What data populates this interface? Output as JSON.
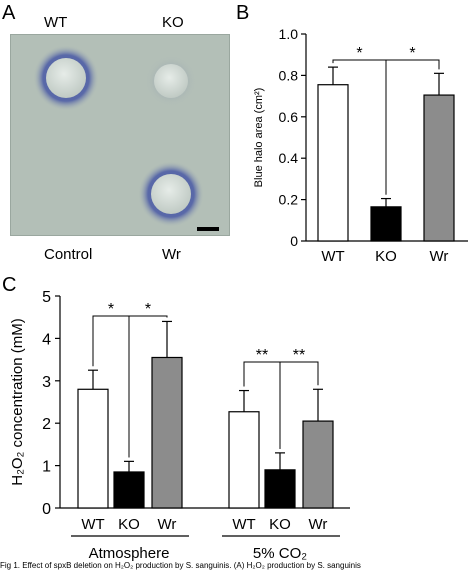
{
  "panels": {
    "a": {
      "letter": "A",
      "labels": {
        "wt": "WT",
        "ko": "KO",
        "control": "Control",
        "wr": "Wr"
      }
    },
    "b": {
      "letter": "B"
    },
    "c": {
      "letter": "C"
    }
  },
  "caption": "Fig 1. Effect of spxB deletion on H₂O₂ production by S. sanguinis. (A) H₂O₂ production by S. sanguinis",
  "colors": {
    "wt_fill": "#ffffff",
    "ko_fill": "#000000",
    "wr_fill": "#8c8c8c",
    "plate_bg": "#b3bfb7",
    "halo": "#3e4e9c"
  },
  "chart_data": [
    {
      "type": "bar",
      "panel": "B",
      "categories": [
        "WT",
        "KO",
        "Wr"
      ],
      "values": [
        0.755,
        0.165,
        0.705
      ],
      "errors": [
        0.085,
        0.04,
        0.105
      ],
      "ylabel": "Blue halo area (cm²)",
      "ylim": [
        0,
        1.0
      ],
      "yticks": [
        "0",
        "0.2",
        "0.4",
        "0.6",
        "0.8",
        "1.0"
      ],
      "significance": [
        {
          "from": "WT",
          "to": "KO",
          "label": "*"
        },
        {
          "from": "KO",
          "to": "Wr",
          "label": "*"
        }
      ]
    },
    {
      "type": "bar",
      "panel": "C",
      "groups": [
        "Atmosphere",
        "5% CO₂"
      ],
      "categories": [
        "WT",
        "KO",
        "Wr"
      ],
      "series": [
        {
          "group": "Atmosphere",
          "values": [
            2.8,
            0.85,
            3.55
          ],
          "errors": [
            0.45,
            0.25,
            0.85
          ]
        },
        {
          "group": "5% CO₂",
          "values": [
            2.27,
            0.9,
            2.05
          ],
          "errors": [
            0.5,
            0.4,
            0.75
          ]
        }
      ],
      "ylabel": "H₂O₂ concentration (mM)",
      "ylim": [
        0,
        5
      ],
      "yticks": [
        "0",
        "1",
        "2",
        "3",
        "4",
        "5"
      ],
      "significance": [
        {
          "group": "Atmosphere",
          "from": "WT",
          "to": "KO",
          "label": "*"
        },
        {
          "group": "Atmosphere",
          "from": "KO",
          "to": "Wr",
          "label": "*"
        },
        {
          "group": "5% CO₂",
          "from": "WT",
          "to": "KO",
          "label": "**"
        },
        {
          "group": "5% CO₂",
          "from": "KO",
          "to": "Wr",
          "label": "**"
        }
      ]
    }
  ]
}
